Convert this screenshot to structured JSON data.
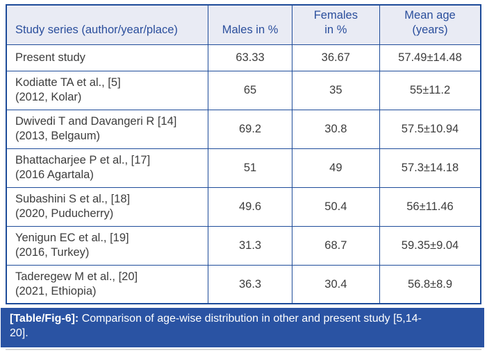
{
  "table": {
    "headers": [
      {
        "line1": "Study series (author/year/place)",
        "line2": ""
      },
      {
        "line1": "Males in %",
        "line2": ""
      },
      {
        "line1": "Females",
        "line2": "in %"
      },
      {
        "line1": "Mean age",
        "line2": "(years)"
      }
    ],
    "rows": [
      {
        "study_line1": "Present study",
        "study_line2": "",
        "males": "63.33",
        "females": "36.67",
        "mean_age": "57.49±14.48"
      },
      {
        "study_line1": "Kodiatte TA et al., [5]",
        "study_line2": "(2012, Kolar)",
        "males": "65",
        "females": "35",
        "mean_age": "55±11.2"
      },
      {
        "study_line1": "Dwivedi T and Davangeri R [14]",
        "study_line2": "(2013, Belgaum)",
        "males": "69.2",
        "females": "30.8",
        "mean_age": "57.5±10.94"
      },
      {
        "study_line1": "Bhattacharjee P et al., [17]",
        "study_line2": "(2016 Agartala)",
        "males": "51",
        "females": "49",
        "mean_age": "57.3±14.18"
      },
      {
        "study_line1": "Subashini S et al., [18]",
        "study_line2": "(2020, Puducherry)",
        "males": "49.6",
        "females": "50.4",
        "mean_age": "56±11.46"
      },
      {
        "study_line1": "Yenigun EC et al., [19]",
        "study_line2": "(2016, Turkey)",
        "males": "31.3",
        "females": "68.7",
        "mean_age": "59.35±9.04"
      },
      {
        "study_line1": "Taderegew M et al., [20]",
        "study_line2": "(2021, Ethiopia)",
        "males": "36.3",
        "females": "30.4",
        "mean_age": "56.8±8.9"
      }
    ]
  },
  "caption": {
    "label": "[Table/Fig-6]:",
    "text": "Comparison of age-wise distribution in other and present study [5,14-20]."
  },
  "colors": {
    "border": "#1d4b99",
    "header_bg": "#e9ebf4",
    "header_text": "#2a4e9c",
    "body_text": "#3d3d3d",
    "caption_bg": "#2a53a3",
    "caption_text": "#ffffff"
  }
}
